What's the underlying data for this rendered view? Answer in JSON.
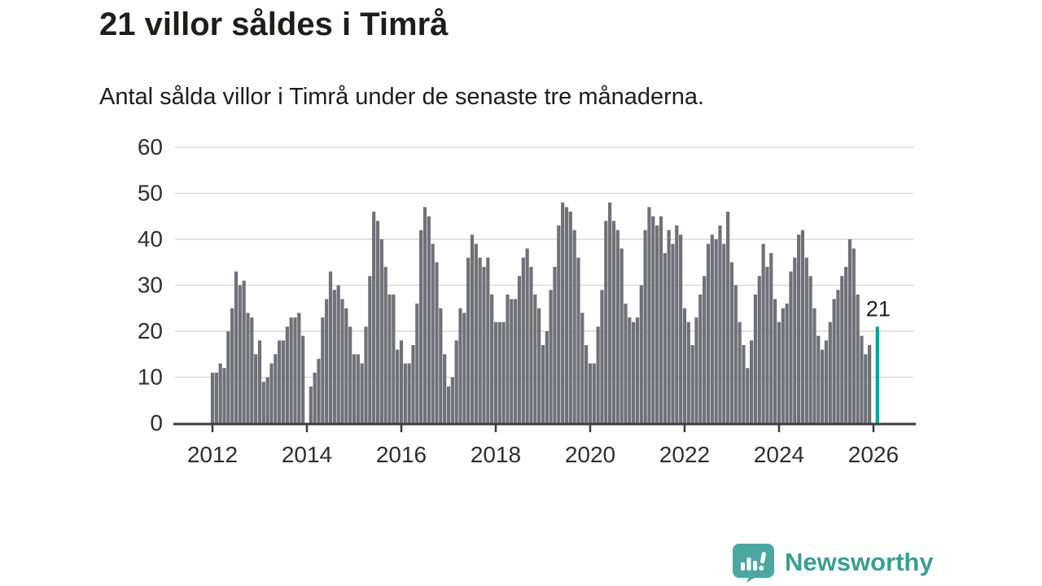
{
  "header": {
    "title": "21 villor såldes i Timrå",
    "subtitle": "Antal sålda villor i Timrå under de senaste tre månaderna."
  },
  "logo": {
    "text": "Newsworthy",
    "icon": "speech-bubble-bar-chart-icon",
    "text_color": "#399d95",
    "icon_color": "#4ba8a1"
  },
  "colors": {
    "bar": "#707078",
    "highlight": "#00a49c",
    "grid": "#d9d9d9",
    "axis": "#3b3b40",
    "axis_text": "#2e2e2e",
    "annotation_text": "#1d1d1b"
  },
  "chart_data": {
    "type": "bar",
    "title": "21 villor såldes i Timrå",
    "subtitle": "Antal sålda villor i Timrå under de senaste tre månaderna.",
    "xlabel": "",
    "ylabel": "",
    "grid": true,
    "ylim": [
      0,
      60
    ],
    "y_ticks": [
      0,
      10,
      20,
      30,
      40,
      50,
      60
    ],
    "x_start_month": "2012-01",
    "x_frequency": "monthly",
    "x_year_ticks": [
      {
        "label": "2012",
        "month_index": 0
      },
      {
        "label": "2014",
        "month_index": 24
      },
      {
        "label": "2016",
        "month_index": 48
      },
      {
        "label": "2018",
        "month_index": 72
      },
      {
        "label": "2020",
        "month_index": 96
      },
      {
        "label": "2022",
        "month_index": 120
      },
      {
        "label": "2024",
        "month_index": 144
      },
      {
        "label": "2026",
        "month_index": 168
      }
    ],
    "values": [
      11,
      11,
      13,
      12,
      20,
      25,
      33,
      30,
      31,
      24,
      23,
      15,
      18,
      9,
      10,
      13,
      15,
      18,
      18,
      21,
      23,
      23,
      24,
      19,
      null,
      8,
      11,
      14,
      23,
      27,
      33,
      29,
      30,
      27,
      25,
      21,
      15,
      15,
      13,
      21,
      32,
      46,
      44,
      40,
      34,
      28,
      28,
      16,
      18,
      13,
      13,
      17,
      26,
      42,
      47,
      45,
      39,
      35,
      25,
      15,
      8,
      10,
      18,
      25,
      24,
      36,
      41,
      39,
      36,
      34,
      36,
      28,
      22,
      22,
      22,
      28,
      27,
      27,
      32,
      36,
      38,
      34,
      28,
      25,
      17,
      20,
      29,
      34,
      43,
      48,
      47,
      46,
      42,
      36,
      24,
      17,
      13,
      13,
      21,
      29,
      44,
      48,
      44,
      42,
      38,
      26,
      23,
      22,
      23,
      30,
      42,
      47,
      45,
      43,
      45,
      37,
      42,
      39,
      43,
      41,
      25,
      22,
      17,
      23,
      28,
      32,
      39,
      41,
      40,
      43,
      39,
      46,
      35,
      30,
      22,
      17,
      12,
      18,
      28,
      32,
      39,
      34,
      37,
      27,
      22,
      25,
      26,
      33,
      36,
      41,
      42,
      36,
      32,
      25,
      19,
      16,
      18,
      22,
      27,
      29,
      32,
      34,
      40,
      38,
      28,
      19,
      15,
      17,
      null,
      21
    ],
    "highlight": {
      "index": 169,
      "label": "21",
      "color": "#00a49c"
    },
    "legend": null
  }
}
